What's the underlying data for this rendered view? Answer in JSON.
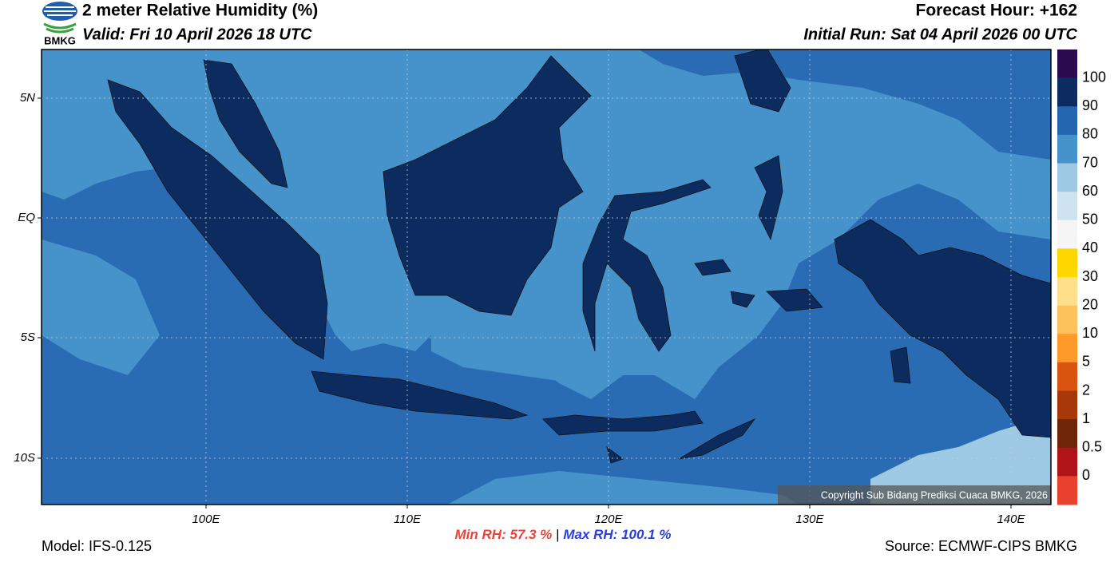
{
  "header": {
    "logo": "BMKG",
    "title": "2 meter Relative Humidity (%)",
    "valid": "Valid: Fri 10 April 2026 18 UTC",
    "forecast_hour": "Forecast Hour: +162",
    "initial_run": "Initial Run: Sat 04 April 2026 00 UTC"
  },
  "map": {
    "lat_labels": [
      "5N",
      "EQ",
      "5S",
      "10S"
    ],
    "lon_labels": [
      "100E",
      "110E",
      "120E",
      "130E",
      "140E"
    ],
    "copyright": "Copyright Sub Bidang Prediksi Cuaca BMKG, 2026"
  },
  "colorbar": {
    "labels": [
      "100",
      "90",
      "80",
      "70",
      "60",
      "50",
      "40",
      "30",
      "20",
      "10",
      "5",
      "2",
      "1",
      "0.5",
      "0"
    ],
    "colors": [
      "#2b0a4f",
      "#0c2c60",
      "#2466b0",
      "#4692ca",
      "#9dc9e4",
      "#cfe2f0",
      "#f5f5f5",
      "#ffd700",
      "#fee08a",
      "#fec25a",
      "#fd9a2a",
      "#d9540f",
      "#a8370a",
      "#6e2508",
      "#b01419",
      "#e8412e"
    ]
  },
  "footer": {
    "model": "Model: IFS-0.125",
    "min_rh_label": "Min RH:",
    "min_rh": "57.3 %",
    "separator": "|",
    "max_rh_label": "Max RH:",
    "max_rh": "100.1 %",
    "source": "Source: ECMWF-CIPS BMKG"
  }
}
